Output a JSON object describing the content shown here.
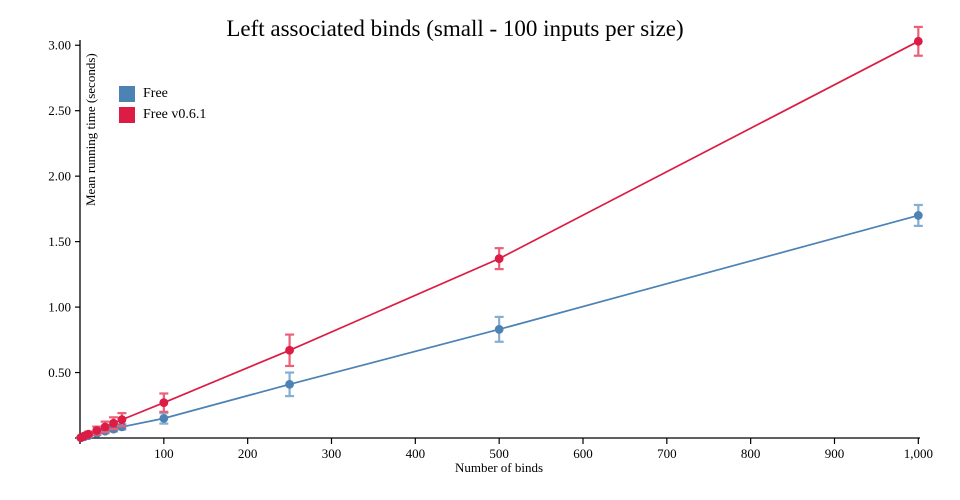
{
  "chart_data": {
    "type": "line",
    "title": "Left associated binds (small - 100 inputs per size)",
    "xlabel": "Number of binds",
    "ylabel": "Mean running time (seconds)",
    "grid": false,
    "error_bars": true,
    "legend_position": "upper-left-inside",
    "xlim": [
      0,
      1002
    ],
    "ylim": [
      0,
      3.04
    ],
    "x_ticks": [
      100,
      200,
      300,
      400,
      500,
      600,
      700,
      800,
      900,
      1000
    ],
    "x_tick_labels": [
      "100",
      "200",
      "300",
      "400",
      "500",
      "600",
      "700",
      "800",
      "900",
      "1,000"
    ],
    "y_ticks": [
      0.5,
      1.0,
      1.5,
      2.0,
      2.5,
      3.0
    ],
    "y_tick_labels": [
      "0.50",
      "1.00",
      "1.50",
      "2.00",
      "2.50",
      "3.00"
    ],
    "x": [
      1,
      5,
      10,
      20,
      30,
      40,
      50,
      100,
      250,
      500,
      1000
    ],
    "series": [
      {
        "name": "Free",
        "color": "#4c82b4",
        "errbar_color": "#84aed2",
        "values": [
          0.002,
          0.009,
          0.018,
          0.035,
          0.052,
          0.068,
          0.085,
          0.15,
          0.41,
          0.83,
          1.7
        ],
        "errors": [
          0.001,
          0.004,
          0.008,
          0.012,
          0.015,
          0.018,
          0.02,
          0.04,
          0.09,
          0.095,
          0.08
        ]
      },
      {
        "name": "Free v0.6.1",
        "color": "#dc1c44",
        "errbar_color": "#ea6078",
        "values": [
          0.003,
          0.015,
          0.029,
          0.057,
          0.085,
          0.113,
          0.14,
          0.27,
          0.67,
          1.37,
          3.03
        ],
        "errors": [
          0.002,
          0.008,
          0.02,
          0.03,
          0.04,
          0.045,
          0.05,
          0.07,
          0.12,
          0.08,
          0.11
        ]
      }
    ]
  }
}
